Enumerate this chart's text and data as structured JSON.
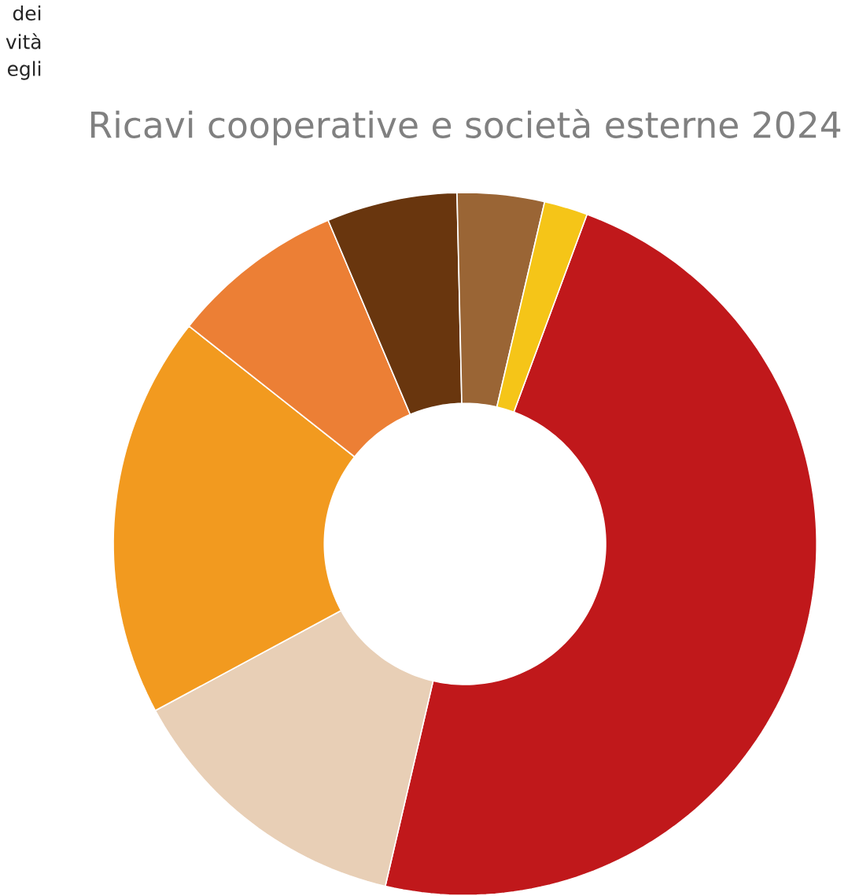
{
  "chart_data": {
    "type": "donut",
    "title": "Ricavi cooperative e società esterne 2024",
    "annotations": [
      "dei",
      "vità",
      "egli"
    ],
    "categories": [
      null,
      null,
      null,
      null,
      null,
      null,
      null
    ],
    "values": [
      48,
      13.5,
      18.5,
      8,
      6,
      4,
      2
    ],
    "colors": [
      "#c0181b",
      "#e8cfb6",
      "#f29a1f",
      "#ec7f35",
      "#69360e",
      "#9a6535",
      "#f5c518"
    ]
  }
}
